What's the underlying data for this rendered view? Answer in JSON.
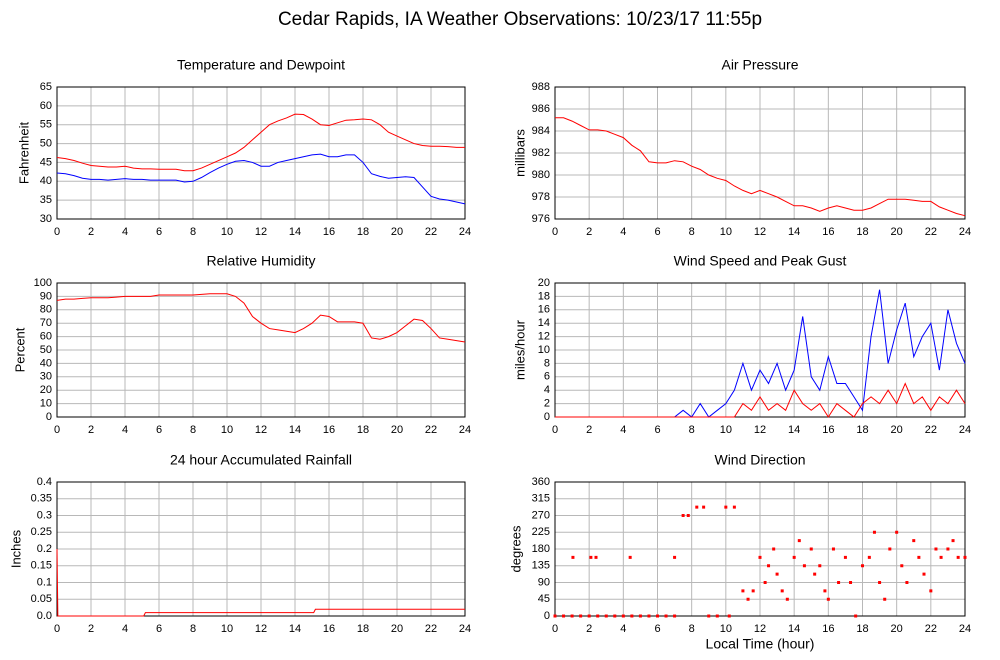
{
  "title": "Cedar Rapids, IA Weather Observations: 10/23/17 11:55p",
  "chart_data": [
    {
      "type": "line",
      "title": "Temperature and Dewpoint",
      "ylabel": "Fahrenheit",
      "x": [
        0,
        0.5,
        1,
        1.5,
        2,
        2.5,
        3,
        3.5,
        4,
        4.5,
        5,
        5.5,
        6,
        6.5,
        7,
        7.5,
        8,
        8.5,
        9,
        9.5,
        10,
        10.5,
        11,
        11.5,
        12,
        12.5,
        13,
        13.5,
        14,
        14.5,
        15,
        15.5,
        16,
        16.5,
        17,
        17.5,
        18,
        18.5,
        19,
        19.5,
        20,
        20.5,
        21,
        21.5,
        22,
        22.5,
        23,
        23.5,
        24
      ],
      "series": [
        {
          "color": "#ff0000",
          "values": [
            46.3,
            46,
            45.5,
            44.8,
            44.2,
            44,
            43.8,
            43.8,
            44,
            43.5,
            43.3,
            43.3,
            43.2,
            43.2,
            43.2,
            42.8,
            42.8,
            43.5,
            44.5,
            45.5,
            46.5,
            47.5,
            49,
            51,
            53,
            55,
            56,
            56.8,
            57.8,
            57.7,
            56.5,
            55,
            54.8,
            55.5,
            56.2,
            56.3,
            56.5,
            56.3,
            55,
            53,
            52,
            51,
            50,
            49.5,
            49.3,
            49.3,
            49.2,
            49,
            49
          ]
        },
        {
          "color": "#0000ff",
          "values": [
            42.2,
            42,
            41.5,
            40.8,
            40.5,
            40.5,
            40.3,
            40.5,
            40.7,
            40.5,
            40.5,
            40.3,
            40.3,
            40.3,
            40.3,
            39.8,
            40,
            41,
            42.3,
            43.5,
            44.5,
            45.3,
            45.5,
            45,
            44,
            44,
            45,
            45.5,
            46,
            46.5,
            47,
            47.2,
            46.5,
            46.5,
            47,
            47,
            45,
            42,
            41.3,
            40.8,
            41,
            41.2,
            41,
            38.5,
            36,
            35.3,
            35,
            34.5,
            34
          ]
        }
      ],
      "xlim": [
        0,
        24
      ],
      "xticks": [
        0,
        2,
        4,
        6,
        8,
        10,
        12,
        14,
        16,
        18,
        20,
        22,
        24
      ],
      "ylim": [
        30,
        65
      ],
      "yticks": [
        30,
        35,
        40,
        45,
        50,
        55,
        60,
        65
      ],
      "grid": true
    },
    {
      "type": "line",
      "title": "Air Pressure",
      "ylabel": "millibars",
      "x": [
        0,
        0.5,
        1,
        1.5,
        2,
        2.5,
        3,
        3.5,
        4,
        4.5,
        5,
        5.5,
        6,
        6.5,
        7,
        7.5,
        8,
        8.5,
        9,
        9.5,
        10,
        10.5,
        11,
        11.5,
        12,
        12.5,
        13,
        13.5,
        14,
        14.5,
        15,
        15.5,
        16,
        16.5,
        17,
        17.5,
        18,
        18.5,
        19,
        19.5,
        20,
        20.5,
        21,
        21.5,
        22,
        22.5,
        23,
        23.5,
        24
      ],
      "series": [
        {
          "color": "#ff0000",
          "values": [
            985.2,
            985.2,
            984.9,
            984.5,
            984.1,
            984.1,
            984,
            983.7,
            983.4,
            982.7,
            982.2,
            981.2,
            981.1,
            981.1,
            981.3,
            981.2,
            980.8,
            980.5,
            980,
            979.7,
            979.5,
            979,
            978.6,
            978.3,
            978.6,
            978.3,
            978,
            977.6,
            977.2,
            977.2,
            977,
            976.7,
            977,
            977.2,
            977,
            976.8,
            976.8,
            977,
            977.4,
            977.8,
            977.8,
            977.8,
            977.7,
            977.6,
            977.6,
            977.1,
            976.8,
            976.5,
            976.3
          ]
        }
      ],
      "xlim": [
        0,
        24
      ],
      "xticks": [
        0,
        2,
        4,
        6,
        8,
        10,
        12,
        14,
        16,
        18,
        20,
        22,
        24
      ],
      "ylim": [
        976,
        988
      ],
      "yticks": [
        976,
        978,
        980,
        982,
        984,
        986,
        988
      ],
      "grid": true
    },
    {
      "type": "line",
      "title": "Relative Humidity",
      "ylabel": "Percent",
      "x": [
        0,
        0.5,
        1,
        1.5,
        2,
        2.5,
        3,
        3.5,
        4,
        4.5,
        5,
        5.5,
        6,
        6.5,
        7,
        7.5,
        8,
        8.5,
        9,
        9.5,
        10,
        10.5,
        11,
        11.5,
        12,
        12.5,
        13,
        13.5,
        14,
        14.5,
        15,
        15.5,
        16,
        16.5,
        17,
        17.5,
        18,
        18.5,
        19,
        19.5,
        20,
        20.5,
        21,
        21.5,
        22,
        22.5,
        23,
        23.5,
        24
      ],
      "series": [
        {
          "color": "#ff0000",
          "values": [
            87,
            88,
            88,
            88.5,
            89,
            89,
            89,
            89.5,
            90,
            90,
            90,
            90,
            91,
            91,
            91,
            91,
            91,
            91.5,
            92,
            92,
            92,
            90,
            85,
            75,
            70,
            66,
            65,
            64,
            63,
            66,
            70,
            76,
            75,
            71,
            71,
            71,
            70,
            59,
            58,
            60,
            63,
            68,
            73,
            72,
            66,
            59,
            58,
            57,
            56
          ]
        }
      ],
      "xlim": [
        0,
        24
      ],
      "xticks": [
        0,
        2,
        4,
        6,
        8,
        10,
        12,
        14,
        16,
        18,
        20,
        22,
        24
      ],
      "ylim": [
        0,
        100
      ],
      "yticks": [
        0,
        10,
        20,
        30,
        40,
        50,
        60,
        70,
        80,
        90,
        100
      ],
      "grid": true
    },
    {
      "type": "line",
      "title": "Wind Speed and Peak Gust",
      "ylabel": "miles/hour",
      "x": [
        0,
        0.5,
        1,
        1.5,
        2,
        2.5,
        3,
        3.5,
        4,
        4.5,
        5,
        5.5,
        6,
        6.5,
        7,
        7.5,
        8,
        8.5,
        9,
        9.5,
        10,
        10.5,
        11,
        11.5,
        12,
        12.5,
        13,
        13.5,
        14,
        14.5,
        15,
        15.5,
        16,
        16.5,
        17,
        17.5,
        18,
        18.5,
        19,
        19.5,
        20,
        20.5,
        21,
        21.5,
        22,
        22.5,
        23,
        23.5,
        24
      ],
      "series": [
        {
          "color": "#0000ff",
          "values": [
            0,
            0,
            0,
            0,
            0,
            0,
            0,
            0,
            0,
            0,
            0,
            0,
            0,
            0,
            0,
            1,
            0,
            2,
            0,
            1,
            2,
            4,
            8,
            4,
            7,
            5,
            8,
            4,
            7,
            15,
            6,
            4,
            9,
            5,
            5,
            3,
            1,
            12,
            19,
            8,
            13,
            17,
            9,
            12,
            14,
            7,
            16,
            11,
            8
          ]
        },
        {
          "color": "#ff0000",
          "values": [
            0,
            0,
            0,
            0,
            0,
            0,
            0,
            0,
            0,
            0,
            0,
            0,
            0,
            0,
            0,
            0,
            0,
            0,
            0,
            0,
            0,
            0,
            2,
            1,
            3,
            1,
            2,
            1,
            4,
            2,
            1,
            2,
            0,
            2,
            1,
            0,
            2,
            3,
            2,
            4,
            2,
            5,
            2,
            3,
            1,
            3,
            2,
            4,
            2
          ]
        }
      ],
      "xlim": [
        0,
        24
      ],
      "xticks": [
        0,
        2,
        4,
        6,
        8,
        10,
        12,
        14,
        16,
        18,
        20,
        22,
        24
      ],
      "ylim": [
        0,
        20
      ],
      "yticks": [
        0,
        2,
        4,
        6,
        8,
        10,
        12,
        14,
        16,
        18,
        20
      ],
      "grid": true
    },
    {
      "type": "line",
      "title": "24 hour Accumulated Rainfall",
      "ylabel": "Inches",
      "x": [
        0,
        0.05,
        0.1,
        5.1,
        5.2,
        15.1,
        15.2,
        24
      ],
      "series": [
        {
          "color": "#ff0000",
          "values": [
            0.2,
            0,
            0,
            0,
            0.01,
            0.01,
            0.02,
            0.02
          ]
        }
      ],
      "xlim": [
        0,
        24
      ],
      "xticks": [
        0,
        2,
        4,
        6,
        8,
        10,
        12,
        14,
        16,
        18,
        20,
        22,
        24
      ],
      "ylim": [
        0,
        0.4
      ],
      "yticks": [
        {
          "value": 0,
          "label": "0.0"
        },
        0.05,
        0.1,
        0.15,
        0.2,
        0.25,
        0.3,
        0.35,
        0.4
      ],
      "grid": true
    },
    {
      "type": "scatter",
      "title": "Wind Direction",
      "ylabel": "degrees",
      "xlabel": "Local Time (hour)",
      "x": [
        0,
        0.5,
        1,
        1.5,
        2,
        2.5,
        3,
        3.5,
        4,
        4.5,
        5,
        5.5,
        6,
        6.5,
        7,
        1.05,
        2.1,
        2.4,
        4.4,
        7,
        7.5,
        7.8,
        8.3,
        8.7,
        9,
        9.5,
        10,
        10.2,
        10.5,
        11,
        11.3,
        11.6,
        12,
        12.3,
        12.5,
        12.8,
        13,
        13.3,
        13.6,
        14,
        14.3,
        14.6,
        15,
        15.2,
        15.5,
        15.8,
        16,
        16.3,
        16.6,
        17,
        17.3,
        17.6,
        18,
        18.4,
        18.7,
        19,
        19.3,
        19.6,
        20,
        20.3,
        20.6,
        21,
        21.3,
        21.6,
        22,
        22.3,
        22.6,
        23,
        23.3,
        23.6,
        24
      ],
      "series": [
        {
          "color": "#ff0000",
          "values": [
            0,
            0,
            0,
            0,
            0,
            0,
            0,
            0,
            0,
            0,
            0,
            0,
            0,
            0,
            0,
            157.5,
            157.5,
            157.5,
            157.5,
            157.5,
            270,
            270,
            292.5,
            292.5,
            0,
            0,
            292.5,
            0,
            292.5,
            67.5,
            45,
            67.5,
            157.5,
            90,
            135,
            180,
            112.5,
            67.5,
            45,
            157.5,
            202.5,
            135,
            180,
            112.5,
            135,
            67.5,
            45,
            180,
            90,
            157.5,
            90,
            0,
            135,
            157.5,
            225,
            90,
            45,
            180,
            225,
            135,
            90,
            202.5,
            157.5,
            112.5,
            67.5,
            180,
            157.5,
            180,
            202.5,
            157.5,
            157.5
          ]
        }
      ],
      "xlim": [
        0,
        24
      ],
      "xticks": [
        0,
        2,
        4,
        6,
        8,
        10,
        12,
        14,
        16,
        18,
        20,
        22,
        24
      ],
      "ylim": [
        0,
        360
      ],
      "yticks": [
        0,
        45,
        90,
        135,
        180,
        225,
        270,
        315,
        360
      ],
      "grid": true
    }
  ]
}
